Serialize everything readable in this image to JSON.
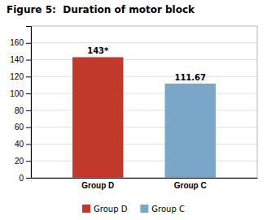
{
  "chart_data": {
    "type": "bar",
    "title": "Figure 5:  Duration of motor block",
    "categories": [
      "Group D",
      "Group C"
    ],
    "values": [
      143,
      111.67
    ],
    "value_labels": [
      "143*",
      "111.67"
    ],
    "data_labels": true,
    "colors": [
      "#c0392b",
      "#7aa7c7"
    ],
    "ylim": [
      0,
      180
    ],
    "yticks": [
      0,
      20,
      40,
      60,
      80,
      100,
      120,
      140,
      160
    ],
    "grid": true,
    "legend": "bottom"
  }
}
